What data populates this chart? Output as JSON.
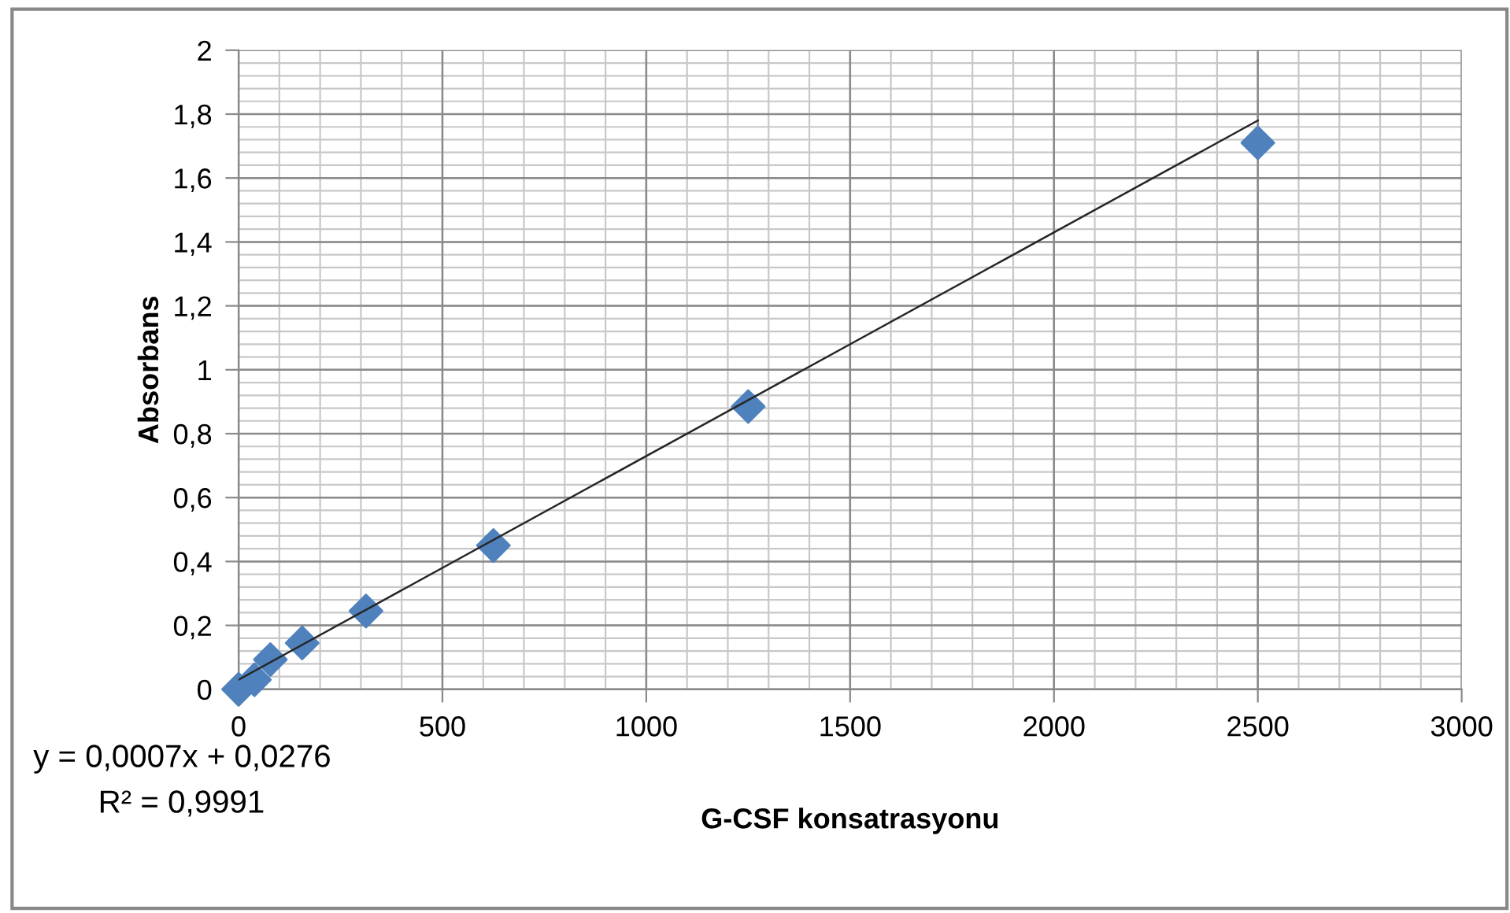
{
  "chart_data": {
    "type": "scatter",
    "xlabel": "G-CSF konsatrasyonu",
    "ylabel": "Absorbans",
    "series": [
      {
        "color": "#4f81bd",
        "marker": "diamond",
        "x": [
          0,
          39,
          78,
          156,
          312.5,
          625,
          1250,
          2500
        ],
        "values": [
          0.0,
          0.03,
          0.093,
          0.145,
          0.245,
          0.45,
          0.885,
          1.71
        ]
      },
      {
        "type": "line",
        "color": "#262626",
        "marker": "none",
        "line_style": "solid",
        "x": [
          0,
          2500
        ],
        "values": [
          0.03,
          1.78
        ]
      }
    ],
    "annotations": [
      "y = 0,0007x + 0,0276",
      "R² = 0,9991"
    ],
    "xlim": [
      0,
      3000
    ],
    "xticks": [
      0,
      500,
      1000,
      1500,
      2000,
      2500,
      3000
    ],
    "ylim": [
      0,
      2
    ],
    "yticks": [
      0,
      {
        "value": 0.2,
        "label": "0,2"
      },
      {
        "value": 0.4,
        "label": "0,4"
      },
      {
        "value": 0.6,
        "label": "0,6"
      },
      {
        "value": 0.8,
        "label": "0,8"
      },
      1,
      {
        "value": 1.2,
        "label": "1,2"
      },
      {
        "value": 1.4,
        "label": "1,4"
      },
      {
        "value": 1.6,
        "label": "1,6"
      },
      {
        "value": 1.8,
        "label": "1,8"
      },
      2
    ],
    "grid": true,
    "legend": false
  }
}
